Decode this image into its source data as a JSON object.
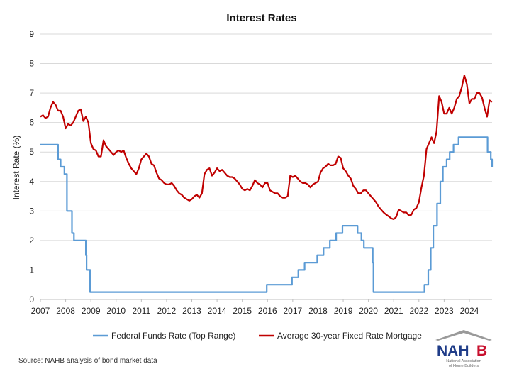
{
  "chart_data": {
    "type": "line",
    "title": "Interest Rates",
    "xlabel": "",
    "ylabel": "Interest Rate (%)",
    "ylim": [
      0,
      9
    ],
    "xlim": [
      2007,
      2024.9
    ],
    "yticks": [
      "0",
      "1",
      "2",
      "3",
      "4",
      "5",
      "6",
      "7",
      "8",
      "9"
    ],
    "xticks": [
      "2007",
      "2008",
      "2009",
      "2010",
      "2011",
      "2012",
      "2013",
      "2014",
      "2015",
      "2016",
      "2017",
      "2018",
      "2019",
      "2020",
      "2021",
      "2022",
      "2023",
      "2024"
    ],
    "grid": true,
    "legend_position": "bottom",
    "series": [
      {
        "name": "Federal Funds Rate (Top Range)",
        "color": "#5b9bd5",
        "step": true,
        "points": [
          [
            2007.0,
            5.25
          ],
          [
            2007.6,
            5.25
          ],
          [
            2007.7,
            4.75
          ],
          [
            2007.8,
            4.5
          ],
          [
            2007.95,
            4.25
          ],
          [
            2008.05,
            3.0
          ],
          [
            2008.15,
            3.0
          ],
          [
            2008.25,
            2.25
          ],
          [
            2008.33,
            2.0
          ],
          [
            2008.75,
            2.0
          ],
          [
            2008.8,
            1.5
          ],
          [
            2008.83,
            1.0
          ],
          [
            2008.95,
            1.0
          ],
          [
            2008.97,
            0.25
          ],
          [
            2015.95,
            0.25
          ],
          [
            2015.97,
            0.5
          ],
          [
            2016.95,
            0.5
          ],
          [
            2016.97,
            0.75
          ],
          [
            2017.2,
            0.75
          ],
          [
            2017.22,
            1.0
          ],
          [
            2017.45,
            1.0
          ],
          [
            2017.47,
            1.25
          ],
          [
            2017.95,
            1.25
          ],
          [
            2017.97,
            1.5
          ],
          [
            2018.2,
            1.5
          ],
          [
            2018.22,
            1.75
          ],
          [
            2018.45,
            1.75
          ],
          [
            2018.47,
            2.0
          ],
          [
            2018.7,
            2.0
          ],
          [
            2018.72,
            2.25
          ],
          [
            2018.95,
            2.25
          ],
          [
            2018.97,
            2.5
          ],
          [
            2019.55,
            2.5
          ],
          [
            2019.57,
            2.25
          ],
          [
            2019.7,
            2.25
          ],
          [
            2019.72,
            2.0
          ],
          [
            2019.8,
            2.0
          ],
          [
            2019.82,
            1.75
          ],
          [
            2020.15,
            1.75
          ],
          [
            2020.17,
            1.25
          ],
          [
            2020.2,
            0.25
          ],
          [
            2022.2,
            0.25
          ],
          [
            2022.22,
            0.5
          ],
          [
            2022.35,
            0.5
          ],
          [
            2022.37,
            1.0
          ],
          [
            2022.45,
            1.0
          ],
          [
            2022.47,
            1.75
          ],
          [
            2022.55,
            1.75
          ],
          [
            2022.57,
            2.5
          ],
          [
            2022.7,
            2.5
          ],
          [
            2022.72,
            3.25
          ],
          [
            2022.83,
            3.25
          ],
          [
            2022.85,
            4.0
          ],
          [
            2022.93,
            4.0
          ],
          [
            2022.95,
            4.5
          ],
          [
            2023.08,
            4.5
          ],
          [
            2023.1,
            4.75
          ],
          [
            2023.2,
            4.75
          ],
          [
            2023.22,
            5.0
          ],
          [
            2023.35,
            5.0
          ],
          [
            2023.37,
            5.25
          ],
          [
            2023.55,
            5.25
          ],
          [
            2023.57,
            5.5
          ],
          [
            2024.7,
            5.5
          ],
          [
            2024.72,
            5.0
          ],
          [
            2024.83,
            5.0
          ],
          [
            2024.85,
            4.75
          ],
          [
            2024.9,
            4.5
          ]
        ]
      },
      {
        "name": "Average 30-year Fixed Rate Mortgage",
        "color": "#c00000",
        "step": false,
        "points": [
          [
            2007.0,
            6.2
          ],
          [
            2007.1,
            6.25
          ],
          [
            2007.2,
            6.15
          ],
          [
            2007.3,
            6.2
          ],
          [
            2007.4,
            6.5
          ],
          [
            2007.5,
            6.7
          ],
          [
            2007.6,
            6.6
          ],
          [
            2007.7,
            6.4
          ],
          [
            2007.8,
            6.4
          ],
          [
            2007.9,
            6.2
          ],
          [
            2008.0,
            5.8
          ],
          [
            2008.1,
            5.95
          ],
          [
            2008.2,
            5.9
          ],
          [
            2008.3,
            6.0
          ],
          [
            2008.4,
            6.2
          ],
          [
            2008.5,
            6.4
          ],
          [
            2008.6,
            6.45
          ],
          [
            2008.7,
            6.05
          ],
          [
            2008.8,
            6.2
          ],
          [
            2008.9,
            6.0
          ],
          [
            2009.0,
            5.3
          ],
          [
            2009.1,
            5.1
          ],
          [
            2009.2,
            5.05
          ],
          [
            2009.3,
            4.85
          ],
          [
            2009.4,
            4.85
          ],
          [
            2009.5,
            5.4
          ],
          [
            2009.6,
            5.2
          ],
          [
            2009.7,
            5.1
          ],
          [
            2009.8,
            5.0
          ],
          [
            2009.9,
            4.9
          ],
          [
            2010.0,
            5.0
          ],
          [
            2010.1,
            5.05
          ],
          [
            2010.2,
            5.0
          ],
          [
            2010.3,
            5.05
          ],
          [
            2010.4,
            4.8
          ],
          [
            2010.5,
            4.6
          ],
          [
            2010.6,
            4.45
          ],
          [
            2010.7,
            4.35
          ],
          [
            2010.8,
            4.25
          ],
          [
            2010.9,
            4.45
          ],
          [
            2011.0,
            4.75
          ],
          [
            2011.1,
            4.85
          ],
          [
            2011.2,
            4.95
          ],
          [
            2011.3,
            4.85
          ],
          [
            2011.4,
            4.6
          ],
          [
            2011.5,
            4.55
          ],
          [
            2011.6,
            4.3
          ],
          [
            2011.7,
            4.1
          ],
          [
            2011.8,
            4.05
          ],
          [
            2011.9,
            3.95
          ],
          [
            2012.0,
            3.9
          ],
          [
            2012.1,
            3.9
          ],
          [
            2012.2,
            3.95
          ],
          [
            2012.3,
            3.85
          ],
          [
            2012.4,
            3.7
          ],
          [
            2012.5,
            3.6
          ],
          [
            2012.6,
            3.55
          ],
          [
            2012.7,
            3.45
          ],
          [
            2012.8,
            3.4
          ],
          [
            2012.9,
            3.35
          ],
          [
            2013.0,
            3.4
          ],
          [
            2013.1,
            3.5
          ],
          [
            2013.2,
            3.55
          ],
          [
            2013.3,
            3.45
          ],
          [
            2013.4,
            3.6
          ],
          [
            2013.5,
            4.25
          ],
          [
            2013.6,
            4.4
          ],
          [
            2013.7,
            4.45
          ],
          [
            2013.8,
            4.2
          ],
          [
            2013.9,
            4.3
          ],
          [
            2014.0,
            4.45
          ],
          [
            2014.1,
            4.35
          ],
          [
            2014.2,
            4.4
          ],
          [
            2014.3,
            4.3
          ],
          [
            2014.4,
            4.2
          ],
          [
            2014.5,
            4.15
          ],
          [
            2014.6,
            4.15
          ],
          [
            2014.7,
            4.1
          ],
          [
            2014.8,
            4.0
          ],
          [
            2014.9,
            3.9
          ],
          [
            2015.0,
            3.75
          ],
          [
            2015.1,
            3.7
          ],
          [
            2015.2,
            3.75
          ],
          [
            2015.3,
            3.7
          ],
          [
            2015.4,
            3.85
          ],
          [
            2015.5,
            4.05
          ],
          [
            2015.6,
            3.95
          ],
          [
            2015.7,
            3.9
          ],
          [
            2015.8,
            3.8
          ],
          [
            2015.9,
            3.95
          ],
          [
            2016.0,
            3.95
          ],
          [
            2016.1,
            3.7
          ],
          [
            2016.2,
            3.65
          ],
          [
            2016.3,
            3.6
          ],
          [
            2016.4,
            3.6
          ],
          [
            2016.5,
            3.5
          ],
          [
            2016.6,
            3.45
          ],
          [
            2016.7,
            3.45
          ],
          [
            2016.8,
            3.5
          ],
          [
            2016.9,
            4.2
          ],
          [
            2017.0,
            4.15
          ],
          [
            2017.1,
            4.2
          ],
          [
            2017.2,
            4.1
          ],
          [
            2017.3,
            4.0
          ],
          [
            2017.4,
            3.95
          ],
          [
            2017.5,
            3.95
          ],
          [
            2017.6,
            3.9
          ],
          [
            2017.7,
            3.8
          ],
          [
            2017.8,
            3.9
          ],
          [
            2017.9,
            3.95
          ],
          [
            2018.0,
            4.0
          ],
          [
            2018.1,
            4.3
          ],
          [
            2018.2,
            4.45
          ],
          [
            2018.3,
            4.5
          ],
          [
            2018.4,
            4.6
          ],
          [
            2018.5,
            4.55
          ],
          [
            2018.6,
            4.55
          ],
          [
            2018.7,
            4.6
          ],
          [
            2018.8,
            4.85
          ],
          [
            2018.9,
            4.8
          ],
          [
            2019.0,
            4.45
          ],
          [
            2019.1,
            4.35
          ],
          [
            2019.2,
            4.2
          ],
          [
            2019.3,
            4.1
          ],
          [
            2019.4,
            3.85
          ],
          [
            2019.5,
            3.75
          ],
          [
            2019.6,
            3.6
          ],
          [
            2019.7,
            3.6
          ],
          [
            2019.8,
            3.7
          ],
          [
            2019.9,
            3.7
          ],
          [
            2020.0,
            3.6
          ],
          [
            2020.1,
            3.5
          ],
          [
            2020.2,
            3.4
          ],
          [
            2020.3,
            3.3
          ],
          [
            2020.4,
            3.15
          ],
          [
            2020.5,
            3.05
          ],
          [
            2020.6,
            2.95
          ],
          [
            2020.7,
            2.88
          ],
          [
            2020.8,
            2.82
          ],
          [
            2020.9,
            2.75
          ],
          [
            2021.0,
            2.72
          ],
          [
            2021.1,
            2.8
          ],
          [
            2021.2,
            3.05
          ],
          [
            2021.3,
            3.0
          ],
          [
            2021.4,
            2.95
          ],
          [
            2021.5,
            2.95
          ],
          [
            2021.6,
            2.85
          ],
          [
            2021.7,
            2.87
          ],
          [
            2021.8,
            3.05
          ],
          [
            2021.9,
            3.1
          ],
          [
            2022.0,
            3.3
          ],
          [
            2022.1,
            3.8
          ],
          [
            2022.2,
            4.2
          ],
          [
            2022.3,
            5.1
          ],
          [
            2022.4,
            5.3
          ],
          [
            2022.5,
            5.5
          ],
          [
            2022.6,
            5.3
          ],
          [
            2022.7,
            5.7
          ],
          [
            2022.8,
            6.9
          ],
          [
            2022.9,
            6.7
          ],
          [
            2023.0,
            6.3
          ],
          [
            2023.1,
            6.3
          ],
          [
            2023.2,
            6.5
          ],
          [
            2023.3,
            6.3
          ],
          [
            2023.4,
            6.5
          ],
          [
            2023.5,
            6.8
          ],
          [
            2023.6,
            6.9
          ],
          [
            2023.7,
            7.2
          ],
          [
            2023.8,
            7.6
          ],
          [
            2023.9,
            7.3
          ],
          [
            2024.0,
            6.65
          ],
          [
            2024.1,
            6.8
          ],
          [
            2024.2,
            6.8
          ],
          [
            2024.3,
            7.0
          ],
          [
            2024.4,
            7.0
          ],
          [
            2024.5,
            6.85
          ],
          [
            2024.6,
            6.5
          ],
          [
            2024.7,
            6.2
          ],
          [
            2024.8,
            6.75
          ],
          [
            2024.9,
            6.7
          ]
        ]
      }
    ],
    "source_note": "Source: NAHB analysis of bond market data"
  },
  "logo": {
    "name": "NAHB",
    "tagline_line1": "National Association",
    "tagline_line2": "of Home Builders",
    "color_primary": "#1f3c88",
    "color_accent": "#c8102e",
    "roof_color": "#9a9a9a"
  }
}
